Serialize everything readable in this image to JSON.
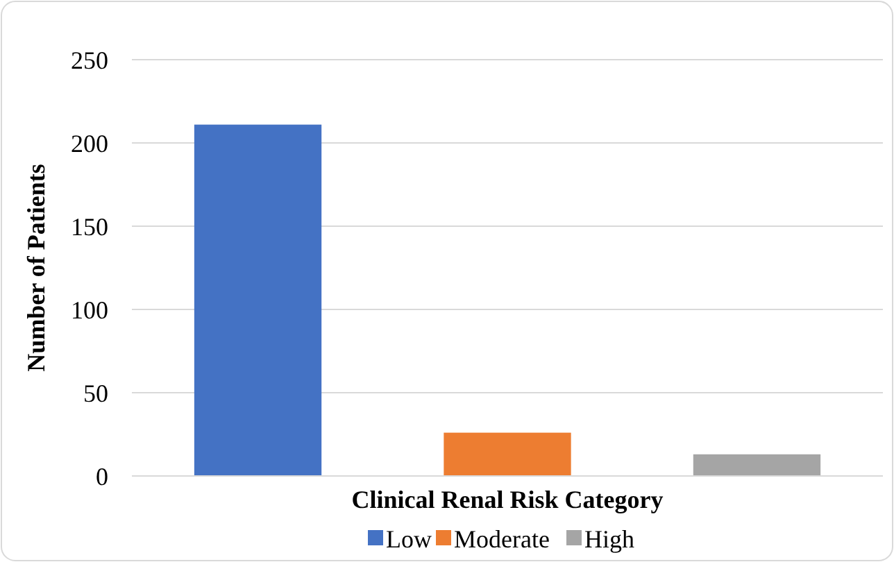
{
  "chart_data": {
    "type": "bar",
    "xlabel": "Clinical Renal Risk Category",
    "ylabel": "Number of Patients",
    "categories": [
      null
    ],
    "series": [
      {
        "name": "Low",
        "color": "#4472c4",
        "values": [
          211
        ]
      },
      {
        "name": "Moderate",
        "color": "#ed7d31",
        "values": [
          26
        ]
      },
      {
        "name": "High",
        "color": "#a5a5a5",
        "values": [
          13
        ]
      }
    ],
    "ylim": [
      0,
      250
    ],
    "yticks": [
      0,
      50,
      100,
      150,
      200,
      250
    ],
    "grid": "y",
    "legend": "bottom"
  }
}
